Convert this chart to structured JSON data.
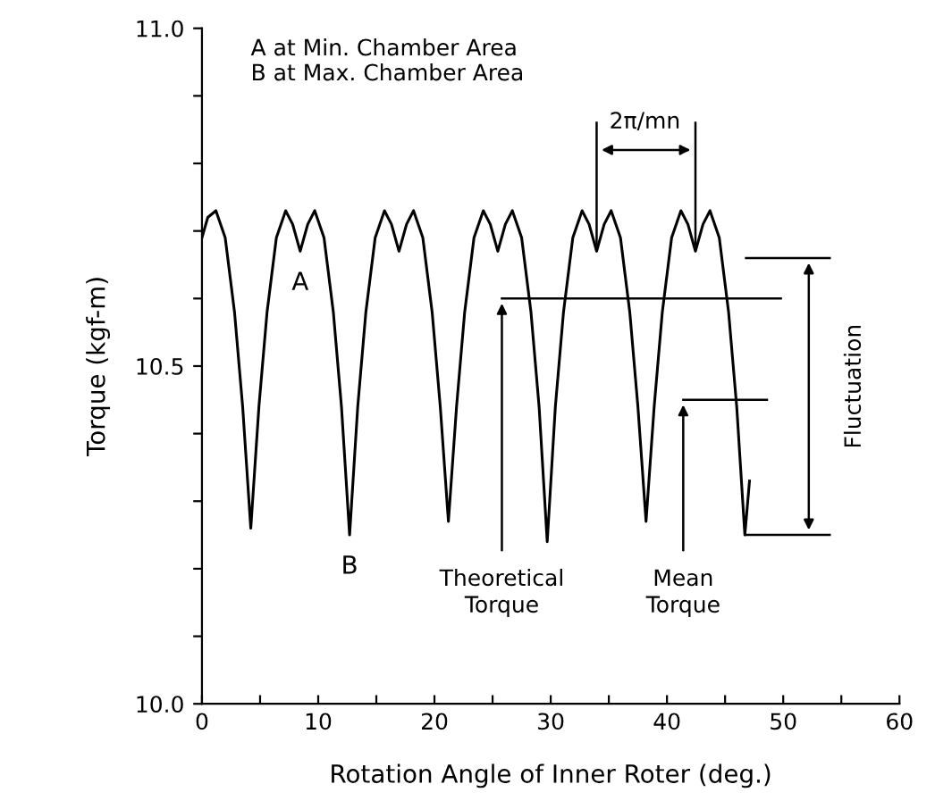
{
  "chart_data": {
    "type": "line",
    "xlabel": "Rotation Angle of Inner Roter (deg.)",
    "ylabel": "Torque (kgf-m)",
    "xlim": [
      0,
      60
    ],
    "ylim": [
      10.0,
      11.0
    ],
    "xticks": [
      0,
      {
        "value": 5,
        "label": null
      },
      10,
      {
        "value": 15,
        "label": null
      },
      20,
      {
        "value": 25,
        "label": null
      },
      30,
      {
        "value": 35,
        "label": null
      },
      40,
      {
        "value": 45,
        "label": null
      },
      50,
      {
        "value": 55,
        "label": null
      },
      60
    ],
    "yticks": [
      {
        "value": 10.0,
        "label": "10.0"
      },
      {
        "value": 10.1,
        "label": null
      },
      {
        "value": 10.2,
        "label": null
      },
      {
        "value": 10.3,
        "label": null
      },
      {
        "value": 10.4,
        "label": null
      },
      10.5,
      {
        "value": 10.6,
        "label": null
      },
      {
        "value": 10.7,
        "label": null
      },
      {
        "value": 10.8,
        "label": null
      },
      {
        "value": 10.9,
        "label": null
      },
      {
        "value": 11.0,
        "label": "11.0"
      }
    ],
    "grid": false,
    "marker": "none",
    "line_style": "solid",
    "series": [
      {
        "color": "#000000",
        "x": [
          0,
          0.5,
          1.2,
          2.0,
          2.8,
          3.5,
          4.2,
          4.9,
          5.6,
          6.4,
          7.2,
          7.8,
          8.45,
          9.1,
          9.7,
          10.5,
          11.3,
          12.0,
          12.7,
          13.4,
          14.1,
          14.9,
          15.7,
          16.3,
          16.95,
          17.6,
          18.2,
          19.0,
          19.8,
          20.5,
          21.2,
          21.9,
          22.6,
          23.4,
          24.2,
          24.8,
          25.45,
          26.1,
          26.7,
          27.5,
          28.3,
          29.0,
          29.7,
          30.4,
          31.1,
          31.9,
          32.7,
          33.3,
          33.95,
          34.6,
          35.2,
          36.0,
          36.8,
          37.5,
          38.2,
          38.9,
          39.6,
          40.4,
          41.2,
          41.8,
          42.45,
          43.1,
          43.7,
          44.5,
          45.3,
          46.0,
          46.7,
          47.1
        ],
        "values": [
          10.69,
          10.72,
          10.73,
          10.69,
          10.58,
          10.44,
          10.26,
          10.44,
          10.58,
          10.69,
          10.73,
          10.71,
          10.67,
          10.71,
          10.73,
          10.69,
          10.58,
          10.44,
          10.25,
          10.44,
          10.58,
          10.69,
          10.73,
          10.71,
          10.67,
          10.71,
          10.73,
          10.69,
          10.58,
          10.44,
          10.27,
          10.44,
          10.58,
          10.69,
          10.73,
          10.71,
          10.67,
          10.71,
          10.73,
          10.69,
          10.58,
          10.44,
          10.24,
          10.44,
          10.58,
          10.69,
          10.73,
          10.71,
          10.67,
          10.71,
          10.73,
          10.69,
          10.58,
          10.44,
          10.27,
          10.44,
          10.58,
          10.69,
          10.73,
          10.71,
          10.67,
          10.71,
          10.73,
          10.69,
          10.58,
          10.44,
          10.25,
          10.33
        ]
      }
    ],
    "ref_lines": [
      {
        "axis": "y",
        "value": 10.6,
        "label": "Theoretical\nTorque"
      },
      {
        "axis": "y",
        "value": 10.45,
        "label": "Mean\nTorque"
      },
      {
        "axis": "y",
        "value": 10.66
      },
      {
        "axis": "y",
        "value": 10.25
      },
      {
        "axis": "x",
        "value": 33.95
      },
      {
        "axis": "x",
        "value": 42.45
      }
    ],
    "annotations": [
      "A at Min. Chamber Area\nB at Max. Chamber Area",
      "Fluctuation",
      "2π/mn",
      {
        "text": "A",
        "x": 8.45,
        "y": 10.67
      },
      {
        "text": "B",
        "x": 12.7,
        "y": 10.25
      }
    ]
  }
}
